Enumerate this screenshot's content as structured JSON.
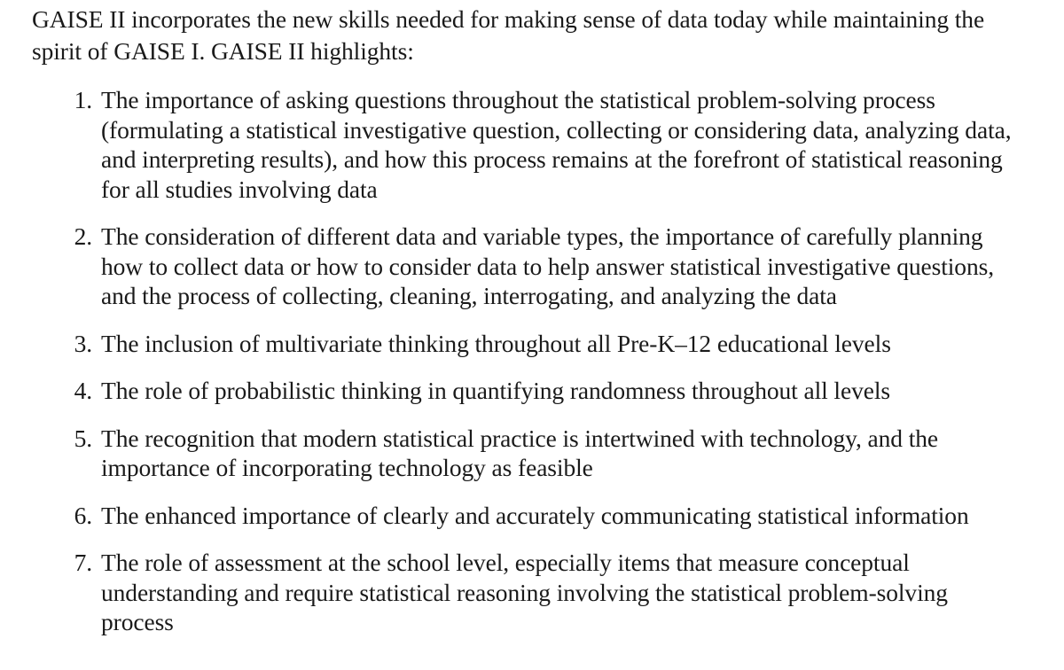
{
  "document": {
    "intro": "GAISE II incorporates the new skills needed for making sense of data today while maintaining the spirit of GAISE I. GAISE II highlights:",
    "items": [
      {
        "number": "1.",
        "text": "The importance of asking questions throughout the statistical problem-solving process (formulating a statistical investigative question, collecting or considering data, analyzing data, and interpreting results), and how this process remains at the forefront of statistical reasoning for all studies involving data"
      },
      {
        "number": "2.",
        "text": "The consideration of different data and variable types, the importance of carefully planning how to collect data or how to consider data to help answer statistical investigative questions, and the process of collecting, cleaning, interrogating, and analyzing the data"
      },
      {
        "number": "3.",
        "text": "The inclusion of multivariate thinking throughout all Pre-K–12 educational levels"
      },
      {
        "number": "4.",
        "text": "The role of probabilistic thinking in quantifying randomness throughout all levels"
      },
      {
        "number": "5.",
        "text": "The recognition that modern statistical practice is intertwined with technology, and the importance of incorporating technology as feasible"
      },
      {
        "number": "6.",
        "text": "The enhanced importance of clearly and accurately communicating statistical information"
      },
      {
        "number": "7.",
        "text": "The role of assessment at the school level, especially items that measure conceptual understanding and require statistical reasoning involving the statistical problem-solving process"
      }
    ]
  }
}
